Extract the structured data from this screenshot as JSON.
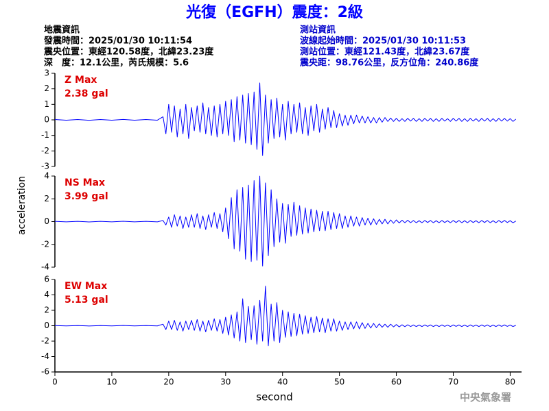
{
  "header": {
    "title": "光復（EGFH）震度：2級",
    "left": [
      "地震資訊",
      "發震時間：2025/01/30 10:11:54",
      "震央位置：東經120.58度，北緯23.23度",
      "深　度：12.1公里，芮氏規模：5.6"
    ],
    "right": [
      "測站資訊",
      "波線起始時間：2025/01/30 10:11:53",
      "測站位置：東經121.43度，北緯23.67度",
      "震央距：98.76公里，反方位角：240.86度"
    ]
  },
  "footer": "中央氣象署",
  "chart_data": [
    {
      "type": "line",
      "label": "Z Max",
      "max_label": "2.38 gal",
      "color": "#0000ff",
      "label_color": "#dd0000",
      "xlim": [
        0,
        82
      ],
      "ylim": [
        -3,
        3
      ],
      "yticks": [
        -3,
        -2,
        -1,
        0,
        1,
        2,
        3
      ],
      "x": [
        0,
        2,
        4,
        6,
        8,
        10,
        12,
        14,
        16,
        18,
        19,
        19.5,
        20,
        20.5,
        21,
        21.5,
        22,
        22.5,
        23,
        23.5,
        24,
        24.5,
        25,
        25.5,
        26,
        26.5,
        27,
        27.5,
        28,
        28.5,
        29,
        29.5,
        30,
        30.5,
        31,
        31.5,
        32,
        32.5,
        33,
        33.5,
        34,
        34.5,
        35,
        35.5,
        36,
        36.5,
        37,
        37.5,
        38,
        38.5,
        39,
        39.5,
        40,
        40.5,
        41,
        41.5,
        42,
        42.5,
        43,
        43.5,
        44,
        44.5,
        45,
        45.5,
        46,
        46.5,
        47,
        47.5,
        48,
        48.5,
        49,
        49.5,
        50,
        50.5,
        51,
        51.5,
        52,
        52.5,
        53,
        53.5,
        54,
        54.5,
        55,
        55.5,
        56,
        56.5,
        57,
        57.5,
        58,
        58.5,
        59,
        59.5,
        60,
        60.5,
        61,
        61.5,
        62,
        62.5,
        63,
        63.5,
        64,
        64.5,
        65,
        65.5,
        66,
        66.5,
        67,
        67.5,
        68,
        68.5,
        69,
        69.5,
        70,
        70.5,
        71,
        71.5,
        72,
        72.5,
        73,
        73.5,
        74,
        74.5,
        75,
        75.5,
        76,
        76.5,
        77,
        77.5,
        78,
        78.5,
        79,
        79.5,
        80,
        80.5,
        81
      ],
      "values": [
        0.02,
        -0.02,
        0.02,
        -0.03,
        0.02,
        -0.02,
        0.03,
        -0.02,
        0.02,
        -0.02,
        0.2,
        -0.9,
        1.0,
        -0.8,
        0.9,
        -1.1,
        0.7,
        -0.9,
        1.0,
        -1.2,
        0.8,
        -0.7,
        0.9,
        -0.8,
        1.1,
        -0.9,
        0.8,
        -1.0,
        0.9,
        -1.1,
        1.0,
        -0.9,
        1.2,
        -1.0,
        1.3,
        -1.4,
        1.5,
        -1.3,
        1.6,
        -1.5,
        1.7,
        -1.6,
        1.8,
        -1.9,
        2.38,
        -2.3,
        1.6,
        -1.5,
        1.3,
        -1.2,
        1.4,
        -1.1,
        1.0,
        -1.3,
        1.2,
        -0.9,
        1.0,
        -0.8,
        1.1,
        -0.9,
        0.8,
        -1.0,
        0.9,
        -0.7,
        1.0,
        -0.8,
        0.7,
        -0.6,
        0.8,
        -0.5,
        0.6,
        -0.5,
        0.4,
        -0.4,
        0.3,
        -0.35,
        0.3,
        -0.25,
        0.3,
        -0.2,
        0.25,
        -0.2,
        0.2,
        -0.2,
        0.15,
        -0.2,
        0.15,
        -0.15,
        0.15,
        -0.1,
        0.12,
        -0.1,
        0.1,
        -0.1,
        0.08,
        -0.1,
        0.1,
        -0.08,
        0.1,
        -0.1,
        0.08,
        -0.1,
        0.1,
        -0.08,
        0.1,
        -0.1,
        0.08,
        -0.1,
        0.1,
        -0.08,
        0.08,
        -0.1,
        0.1,
        -0.08,
        0.1,
        -0.1,
        0.08,
        -0.1,
        0.1,
        -0.08,
        0.08,
        -0.1,
        0.1,
        -0.08,
        0.1,
        -0.1,
        0.08,
        -0.1,
        0.1,
        -0.08,
        0.1,
        -0.08,
        0.08,
        -0.1,
        0.05
      ]
    },
    {
      "type": "line",
      "label": "NS Max",
      "max_label": "3.99 gal",
      "color": "#0000ff",
      "label_color": "#dd0000",
      "ylabel": "acceleration",
      "xlim": [
        0,
        82
      ],
      "ylim": [
        -4,
        4
      ],
      "yticks": [
        -4,
        -2,
        0,
        2,
        4
      ],
      "x": [
        0,
        2,
        4,
        6,
        8,
        10,
        12,
        14,
        16,
        18,
        19,
        19.5,
        20,
        20.5,
        21,
        21.5,
        22,
        22.5,
        23,
        23.5,
        24,
        24.5,
        25,
        25.5,
        26,
        26.5,
        27,
        27.5,
        28,
        28.5,
        29,
        29.5,
        30,
        30.5,
        31,
        31.5,
        32,
        32.5,
        33,
        33.5,
        34,
        34.5,
        35,
        35.5,
        36,
        36.5,
        37,
        37.5,
        38,
        38.5,
        39,
        39.5,
        40,
        40.5,
        41,
        41.5,
        42,
        42.5,
        43,
        43.5,
        44,
        44.5,
        45,
        45.5,
        46,
        46.5,
        47,
        47.5,
        48,
        48.5,
        49,
        49.5,
        50,
        50.5,
        51,
        51.5,
        52,
        52.5,
        53,
        53.5,
        54,
        54.5,
        55,
        55.5,
        56,
        56.5,
        57,
        57.5,
        58,
        58.5,
        59,
        59.5,
        60,
        60.5,
        61,
        61.5,
        62,
        62.5,
        63,
        63.5,
        64,
        64.5,
        65,
        65.5,
        66,
        66.5,
        67,
        67.5,
        68,
        68.5,
        69,
        69.5,
        70,
        70.5,
        71,
        71.5,
        72,
        72.5,
        73,
        73.5,
        74,
        74.5,
        75,
        75.5,
        76,
        76.5,
        77,
        77.5,
        78,
        78.5,
        79,
        79.5,
        80,
        80.5,
        81
      ],
      "values": [
        0.02,
        -0.02,
        0.02,
        -0.03,
        0.02,
        -0.02,
        0.03,
        -0.02,
        0.02,
        -0.02,
        0.1,
        -0.3,
        0.4,
        -0.5,
        0.6,
        -0.4,
        0.5,
        -0.6,
        0.4,
        -0.5,
        0.6,
        -0.5,
        0.7,
        -0.6,
        0.5,
        -0.7,
        0.6,
        -0.5,
        0.8,
        -0.6,
        0.7,
        -0.9,
        1.2,
        -1.5,
        2.1,
        -2.4,
        2.8,
        -2.6,
        3.0,
        -3.3,
        3.2,
        -3.5,
        3.6,
        -3.4,
        3.99,
        -3.9,
        3.4,
        -3.0,
        2.8,
        -2.2,
        2.0,
        -1.8,
        1.6,
        -1.9,
        1.5,
        -1.3,
        1.7,
        -1.2,
        1.4,
        -1.1,
        1.2,
        -1.0,
        1.1,
        -0.9,
        1.0,
        -0.8,
        0.9,
        -0.8,
        0.9,
        -0.7,
        0.8,
        -0.6,
        0.7,
        -0.6,
        0.5,
        -0.5,
        0.5,
        -0.4,
        0.4,
        -0.4,
        0.35,
        -0.3,
        0.3,
        -0.3,
        0.25,
        -0.25,
        0.2,
        -0.2,
        0.2,
        -0.2,
        0.15,
        -0.15,
        0.15,
        -0.12,
        0.12,
        -0.1,
        0.12,
        -0.1,
        0.1,
        -0.1,
        0.08,
        -0.1,
        0.1,
        -0.08,
        0.1,
        -0.1,
        0.08,
        -0.1,
        0.1,
        -0.08,
        0.08,
        -0.1,
        0.1,
        -0.08,
        0.1,
        -0.1,
        0.08,
        -0.1,
        0.1,
        -0.08,
        0.08,
        -0.1,
        0.1,
        -0.08,
        0.1,
        -0.1,
        0.08,
        -0.1,
        0.1,
        -0.08,
        0.1,
        -0.08,
        0.08,
        -0.1,
        0.05
      ]
    },
    {
      "type": "line",
      "label": "EW Max",
      "max_label": "5.13 gal",
      "color": "#0000ff",
      "label_color": "#dd0000",
      "xlabel": "second",
      "xlim": [
        0,
        82
      ],
      "ylim": [
        -6,
        6
      ],
      "yticks": [
        -6,
        -4,
        -2,
        0,
        2,
        4,
        6
      ],
      "xticks": [
        0,
        10,
        20,
        30,
        40,
        50,
        60,
        70,
        80
      ],
      "x": [
        0,
        2,
        4,
        6,
        8,
        10,
        12,
        14,
        16,
        18,
        19,
        19.5,
        20,
        20.5,
        21,
        21.5,
        22,
        22.5,
        23,
        23.5,
        24,
        24.5,
        25,
        25.5,
        26,
        26.5,
        27,
        27.5,
        28,
        28.5,
        29,
        29.5,
        30,
        30.5,
        31,
        31.5,
        32,
        32.5,
        33,
        33.5,
        34,
        34.5,
        35,
        35.5,
        36,
        36.5,
        37,
        37.5,
        38,
        38.5,
        39,
        39.5,
        40,
        40.5,
        41,
        41.5,
        42,
        42.5,
        43,
        43.5,
        44,
        44.5,
        45,
        45.5,
        46,
        46.5,
        47,
        47.5,
        48,
        48.5,
        49,
        49.5,
        50,
        50.5,
        51,
        51.5,
        52,
        52.5,
        53,
        53.5,
        54,
        54.5,
        55,
        55.5,
        56,
        56.5,
        57,
        57.5,
        58,
        58.5,
        59,
        59.5,
        60,
        60.5,
        61,
        61.5,
        62,
        62.5,
        63,
        63.5,
        64,
        64.5,
        65,
        65.5,
        66,
        66.5,
        67,
        67.5,
        68,
        68.5,
        69,
        69.5,
        70,
        70.5,
        71,
        71.5,
        72,
        72.5,
        73,
        73.5,
        74,
        74.5,
        75,
        75.5,
        76,
        76.5,
        77,
        77.5,
        78,
        78.5,
        79,
        79.5,
        80,
        80.5,
        81
      ],
      "values": [
        0.02,
        -0.02,
        0.02,
        -0.03,
        0.02,
        -0.02,
        0.03,
        -0.02,
        0.02,
        -0.02,
        0.2,
        -0.5,
        0.6,
        -0.5,
        0.7,
        -0.6,
        0.5,
        -0.7,
        0.6,
        -0.5,
        0.7,
        -0.6,
        0.8,
        -0.7,
        0.6,
        -0.8,
        0.7,
        -0.6,
        0.9,
        -0.7,
        0.8,
        -1.0,
        1.1,
        -1.2,
        1.4,
        -1.6,
        1.8,
        -2.0,
        3.5,
        -2.2,
        2.5,
        -1.8,
        2.6,
        -2.4,
        3.3,
        -2.0,
        5.13,
        -2.6,
        2.8,
        -2.0,
        3.0,
        -2.2,
        2.0,
        -1.5,
        1.8,
        -1.4,
        1.6,
        -1.3,
        1.5,
        -1.1,
        1.3,
        -1.0,
        1.1,
        -0.9,
        1.2,
        -0.8,
        1.0,
        -0.9,
        0.9,
        -0.7,
        0.9,
        -0.7,
        0.6,
        -0.6,
        0.5,
        -0.5,
        0.5,
        -0.4,
        0.5,
        -0.4,
        0.4,
        -0.35,
        0.3,
        -0.3,
        0.3,
        -0.25,
        0.25,
        -0.2,
        0.2,
        -0.2,
        0.2,
        -0.15,
        0.15,
        -0.15,
        0.12,
        -0.12,
        0.12,
        -0.1,
        0.1,
        -0.1,
        0.08,
        -0.1,
        0.1,
        -0.08,
        0.1,
        -0.1,
        0.08,
        -0.1,
        0.1,
        -0.08,
        0.08,
        -0.1,
        0.1,
        -0.08,
        0.1,
        -0.1,
        0.08,
        -0.1,
        0.1,
        -0.08,
        0.08,
        -0.1,
        0.1,
        -0.08,
        0.1,
        -0.1,
        0.08,
        -0.1,
        0.1,
        -0.08,
        0.1,
        -0.08,
        0.08,
        -0.1,
        0.05
      ]
    }
  ]
}
